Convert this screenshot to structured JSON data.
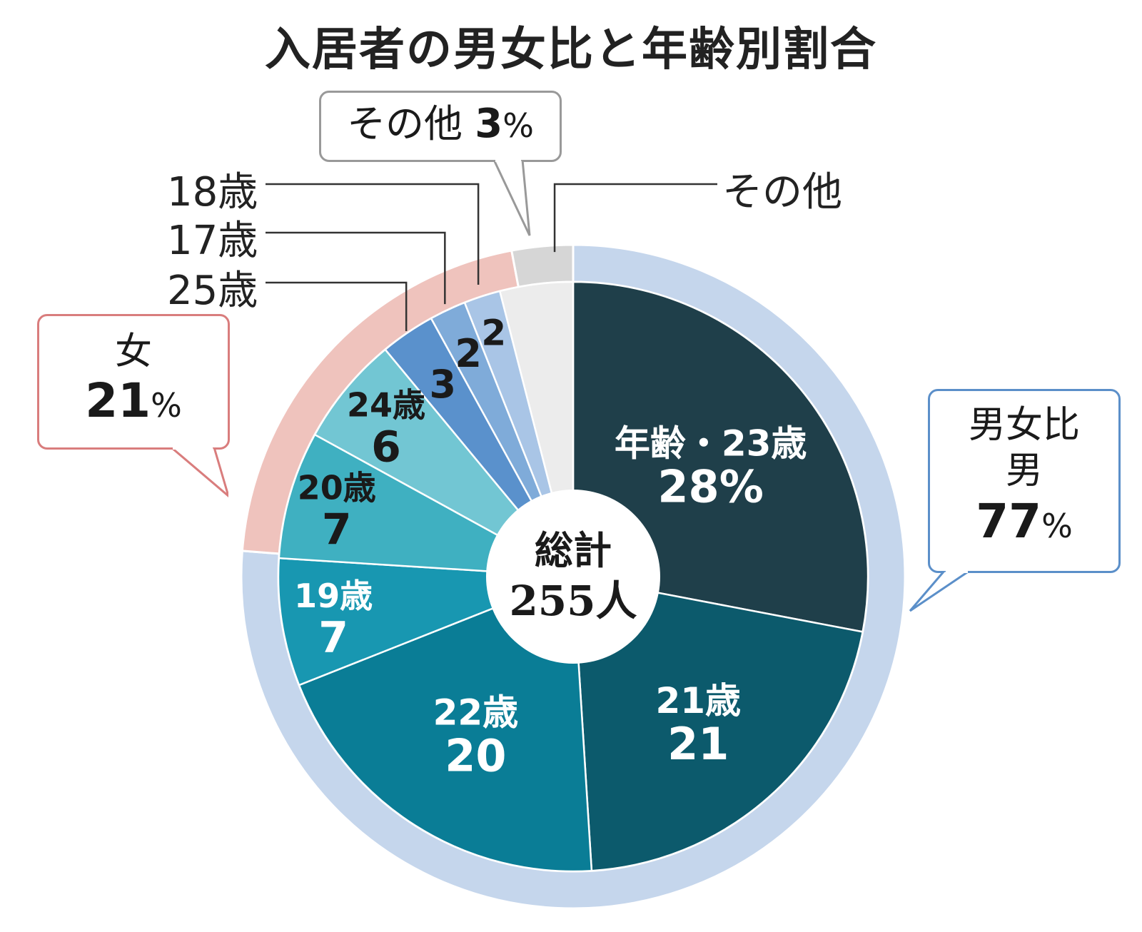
{
  "title": "入居者の男女比と年齢別割合",
  "center": {
    "line1": "総計",
    "line2": "255人"
  },
  "callouts": {
    "female": {
      "label": "女",
      "value": "21",
      "unit": "%"
    },
    "male": {
      "label1": "男女比",
      "label2": "男",
      "value": "77",
      "unit": "%"
    },
    "other": {
      "label": "その他",
      "value": "3",
      "unit": "%"
    }
  },
  "colors": {
    "male_ring": "#c5d6ec",
    "female_ring": "#efc3bd",
    "other_ring": "#d6d6d6"
  },
  "chart_data": {
    "type": "pie",
    "total": 255,
    "unit": "人",
    "inner": {
      "unit": "%",
      "slices": [
        {
          "key": "age23",
          "name": "年齢・23歳",
          "value": 28,
          "display": "28%",
          "color": "#1f3f4a",
          "text_color": "#ffffff"
        },
        {
          "key": "age21",
          "name": "21歳",
          "value": 21,
          "display": "21",
          "color": "#0c5a6c",
          "text_color": "#ffffff"
        },
        {
          "key": "age22",
          "name": "22歳",
          "value": 20,
          "display": "20",
          "color": "#0a7d96",
          "text_color": "#ffffff"
        },
        {
          "key": "age19",
          "name": "19歳",
          "value": 7,
          "display": "7",
          "color": "#1897b1",
          "text_color": "#ffffff"
        },
        {
          "key": "age20",
          "name": "20歳",
          "value": 7,
          "display": "7",
          "color": "#3fb0c1",
          "text_color": "#1a1a1a"
        },
        {
          "key": "age24",
          "name": "24歳",
          "value": 6,
          "display": "6",
          "color": "#72c6d3",
          "text_color": "#1a1a1a"
        },
        {
          "key": "age25",
          "name": "25歳",
          "value": 3,
          "display": "3",
          "color": "#5a91cc",
          "text_color": "#1a1a1a"
        },
        {
          "key": "age17",
          "name": "17歳",
          "value": 2,
          "display": "2",
          "color": "#7fabd9",
          "text_color": "#1a1a1a"
        },
        {
          "key": "age18",
          "name": "18歳",
          "value": 2,
          "display": "2",
          "color": "#a9c5e6",
          "text_color": "#1a1a1a"
        },
        {
          "key": "other",
          "name": "その他",
          "value": 4,
          "display": "",
          "color": "#ececec",
          "text_color": "#1a1a1a"
        }
      ]
    },
    "outer": {
      "unit": "%",
      "slices": [
        {
          "key": "male",
          "name": "男",
          "value": 77
        },
        {
          "key": "female",
          "name": "女",
          "value": 21
        },
        {
          "key": "other",
          "name": "その他",
          "value": 3
        }
      ]
    }
  }
}
